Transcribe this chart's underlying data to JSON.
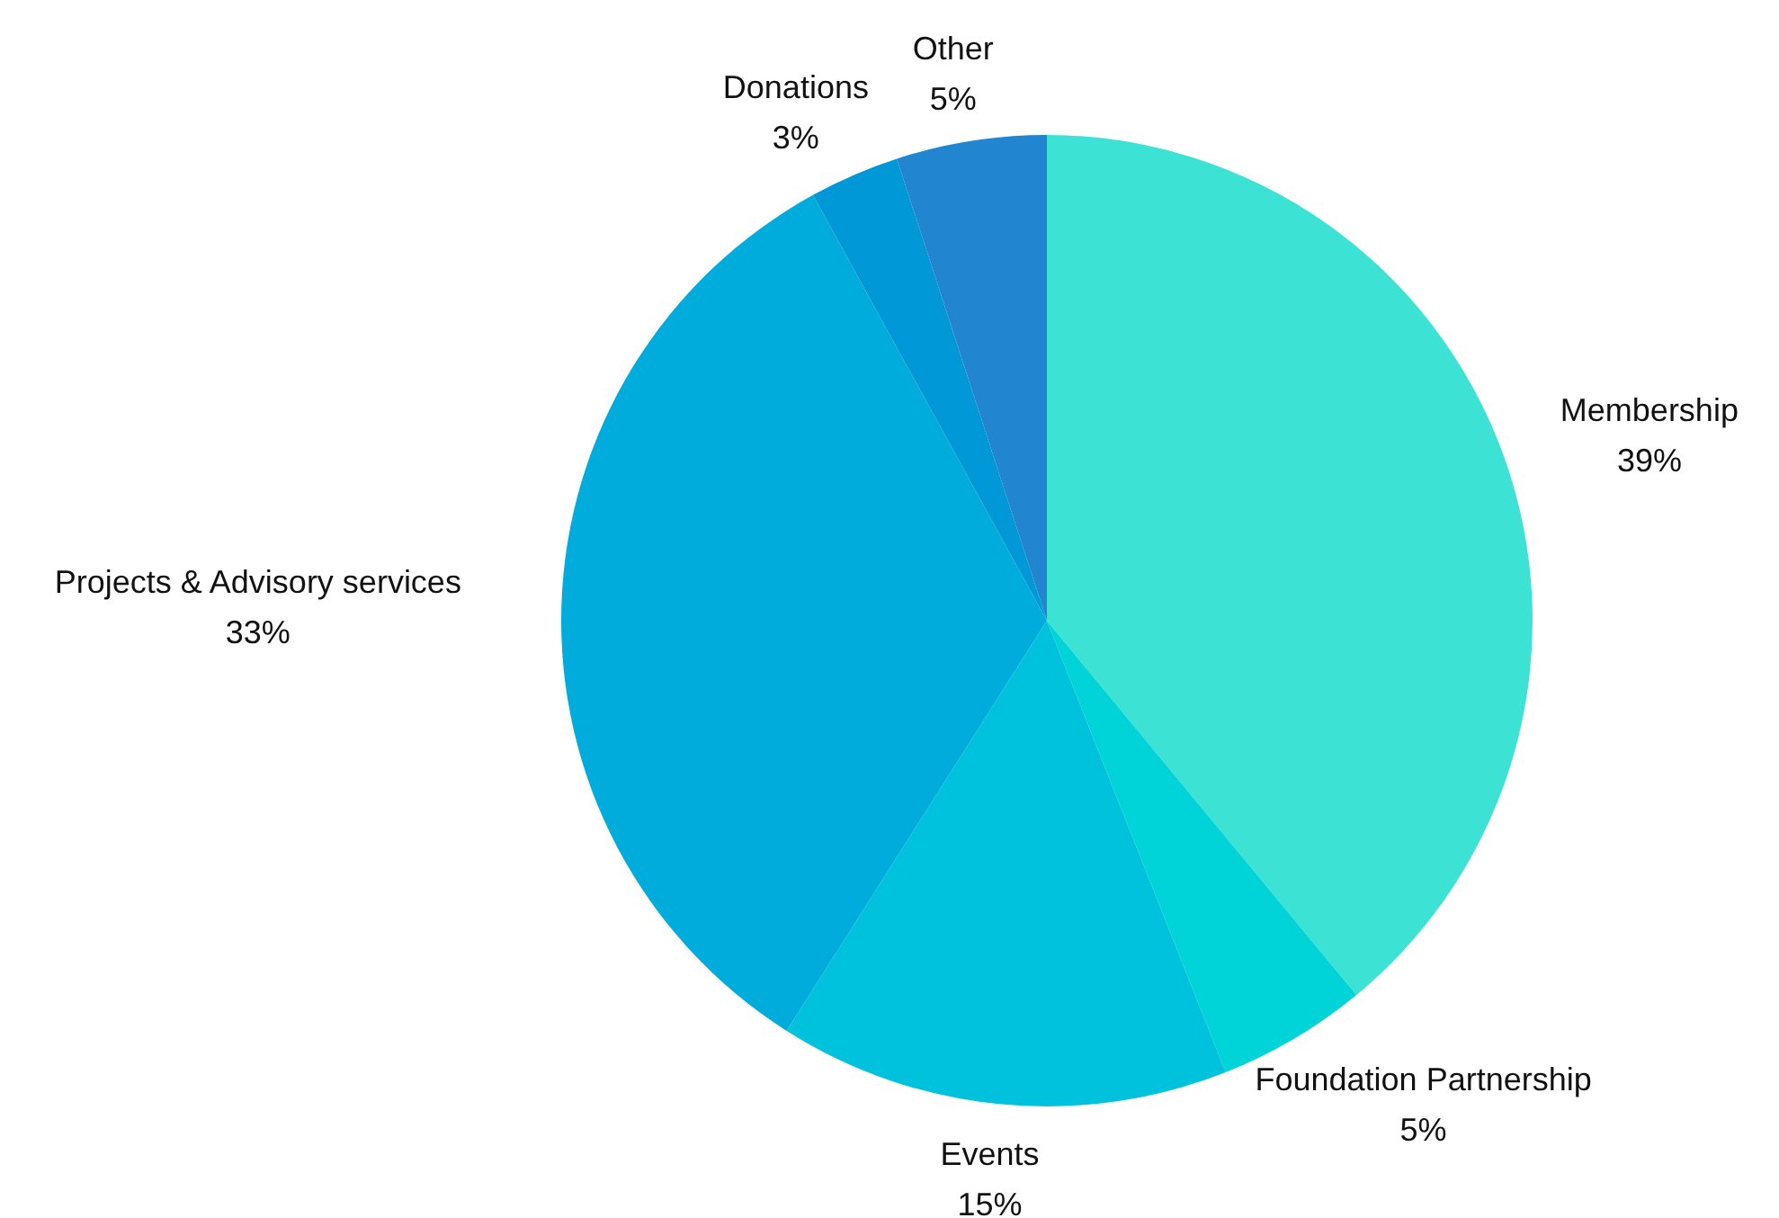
{
  "chart_data": {
    "type": "pie",
    "categories": [
      "Membership",
      "Foundation Partnership",
      "Events",
      "Projects & Advisory services",
      "Donations",
      "Other"
    ],
    "values": [
      39,
      5,
      15,
      33,
      3,
      5
    ],
    "value_labels": [
      "39%",
      "5%",
      "15%",
      "33%",
      "3%",
      "5%"
    ],
    "colors": [
      "#3ce3d5",
      "#00d4d8",
      "#00c2dc",
      "#00acdc",
      "#0098d6",
      "#2185d0"
    ]
  }
}
